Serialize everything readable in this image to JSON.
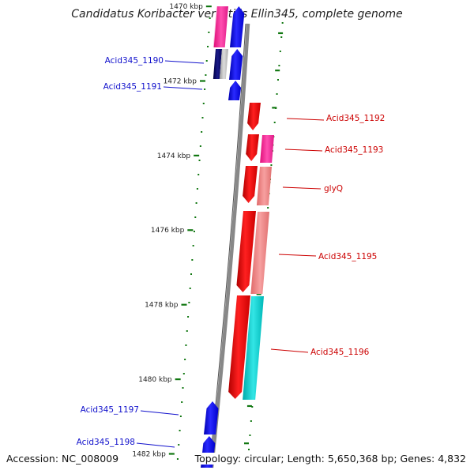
{
  "title": "Candidatus Koribacter versatilis Ellin345, complete genome",
  "accession": "Accession: NC_008009",
  "topology": "Topology: circular; Length: 5,650,368 bp; Genes: 4,832",
  "scale": {
    "unit": "kbp",
    "ticks": [
      {
        "label": "1470 kbp",
        "kbp": 1470
      },
      {
        "label": "1472 kbp",
        "kbp": 1472
      },
      {
        "label": "1474 kbp",
        "kbp": 1474
      },
      {
        "label": "1476 kbp",
        "kbp": 1476
      },
      {
        "label": "1478 kbp",
        "kbp": 1478
      },
      {
        "label": "1480 kbp",
        "kbp": 1480
      },
      {
        "label": "1482 kbp",
        "kbp": 1482
      }
    ]
  },
  "genes": [
    {
      "label": "Acid345_1190",
      "strand": "reverse",
      "color": "#1111cc"
    },
    {
      "label": "Acid345_1191",
      "strand": "reverse",
      "color": "#1111cc"
    },
    {
      "label": "Acid345_1192",
      "strand": "forward",
      "color": "#cc0000"
    },
    {
      "label": "Acid345_1193",
      "strand": "forward",
      "color": "#cc0000"
    },
    {
      "label": "glyQ",
      "strand": "forward",
      "color": "#cc0000"
    },
    {
      "label": "Acid345_1195",
      "strand": "forward",
      "color": "#cc0000"
    },
    {
      "label": "Acid345_1196",
      "strand": "forward",
      "color": "#cc0000"
    },
    {
      "label": "Acid345_1197",
      "strand": "reverse",
      "color": "#1111cc"
    },
    {
      "label": "Acid345_1198",
      "strand": "reverse",
      "color": "#1111cc"
    }
  ],
  "colors": {
    "forward_cds": "#ff0000",
    "reverse_cds": "#0000ff",
    "backbone": "#888888",
    "tick_mark": "#117711",
    "cog_pink": "#ff2d9a",
    "cog_salmon": "#f08080",
    "cog_cyan": "#11cccc",
    "cog_navy": "#000066",
    "cog_gray": "#aaaaaa"
  }
}
